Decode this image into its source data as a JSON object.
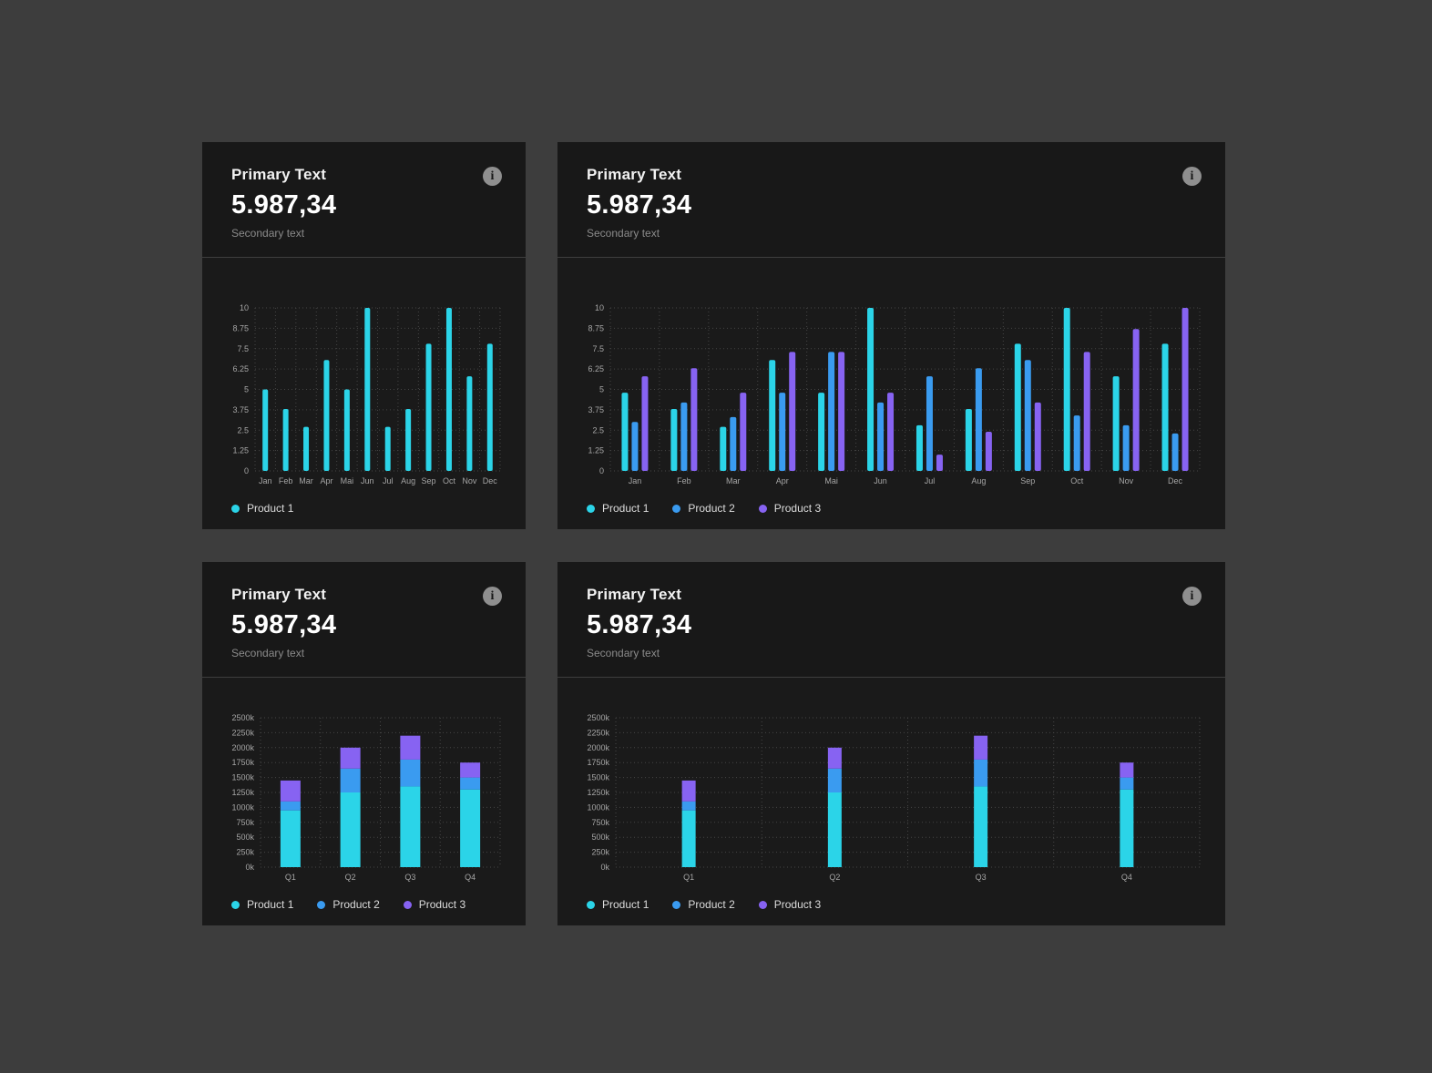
{
  "cards": [
    {
      "title": "Primary Text",
      "value": "5.987,34",
      "secondary": "Secondary text",
      "info_icon": "info"
    },
    {
      "title": "Primary Text",
      "value": "5.987,34",
      "secondary": "Secondary text",
      "info_icon": "info"
    },
    {
      "title": "Primary Text",
      "value": "5.987,34",
      "secondary": "Secondary text",
      "info_icon": "info"
    },
    {
      "title": "Primary Text",
      "value": "5.987,34",
      "secondary": "Secondary text",
      "info_icon": "info"
    }
  ],
  "colors": {
    "card_bg": "#1a1a1a",
    "page_bg": "#3d3d3d",
    "product1": "#2BD4E8",
    "product2": "#3A9BF0",
    "product3": "#8763F2"
  },
  "chart_data": [
    {
      "type": "bar",
      "title": "Primary Text",
      "categories": [
        "Jan",
        "Feb",
        "Mar",
        "Apr",
        "Mai",
        "Jun",
        "Jul",
        "Aug",
        "Sep",
        "Oct",
        "Nov",
        "Dec"
      ],
      "series": [
        {
          "name": "Product 1",
          "color": "#2BD4E8",
          "values": [
            5,
            3.8,
            2.7,
            6.8,
            5,
            10,
            2.7,
            3.8,
            7.8,
            10,
            5.8,
            7.8
          ]
        }
      ],
      "ylim": [
        0,
        10
      ],
      "yticks": [
        0,
        1.25,
        2.5,
        3.75,
        5,
        6.25,
        7.5,
        8.75,
        10
      ],
      "ytick_labels": [
        "0",
        "1.25",
        "2.5",
        "3.75",
        "5",
        "6.25",
        "7.5",
        "8.75",
        "10"
      ],
      "grid": "dotted",
      "legend_position": "bottom-left",
      "legend": [
        "Product 1"
      ]
    },
    {
      "type": "bar",
      "title": "Primary Text",
      "categories": [
        "Jan",
        "Feb",
        "Mar",
        "Apr",
        "Mai",
        "Jun",
        "Jul",
        "Aug",
        "Sep",
        "Oct",
        "Nov",
        "Dec"
      ],
      "series": [
        {
          "name": "Product 1",
          "color": "#2BD4E8",
          "values": [
            4.8,
            3.8,
            2.7,
            6.8,
            4.8,
            10,
            2.8,
            3.8,
            7.8,
            10,
            5.8,
            7.8
          ]
        },
        {
          "name": "Product 2",
          "color": "#3A9BF0",
          "values": [
            3,
            4.2,
            3.3,
            4.8,
            7.3,
            4.2,
            5.8,
            6.3,
            6.8,
            3.4,
            2.8,
            2.3
          ]
        },
        {
          "name": "Product 3",
          "color": "#8763F2",
          "values": [
            5.8,
            6.3,
            4.8,
            7.3,
            7.3,
            4.8,
            1,
            2.4,
            4.2,
            7.3,
            8.7,
            10
          ]
        }
      ],
      "ylim": [
        0,
        10
      ],
      "yticks": [
        0,
        1.25,
        2.5,
        3.75,
        5,
        6.25,
        7.5,
        8.75,
        10
      ],
      "ytick_labels": [
        "0",
        "1.25",
        "2.5",
        "3.75",
        "5",
        "6.25",
        "7.5",
        "8.75",
        "10"
      ],
      "grid": "dotted",
      "legend_position": "bottom-left",
      "legend": [
        "Product 1",
        "Product 2",
        "Product 3"
      ]
    },
    {
      "type": "stacked-bar",
      "title": "Primary Text",
      "categories": [
        "Q1",
        "Q2",
        "Q3",
        "Q4"
      ],
      "unit": "k",
      "series": [
        {
          "name": "Product 1",
          "color": "#2BD4E8",
          "values": [
            950,
            1250,
            1350,
            1300
          ]
        },
        {
          "name": "Product 2",
          "color": "#3A9BF0",
          "values": [
            150,
            400,
            450,
            200
          ]
        },
        {
          "name": "Product 3",
          "color": "#8763F2",
          "values": [
            350,
            350,
            400,
            250
          ]
        }
      ],
      "ylim": [
        0,
        2500
      ],
      "yticks": [
        0,
        250,
        500,
        750,
        1000,
        1250,
        1500,
        1750,
        2000,
        2250,
        2500
      ],
      "ytick_labels": [
        "0k",
        "250k",
        "500k",
        "750k",
        "1000k",
        "1250k",
        "1500k",
        "1750k",
        "2000k",
        "2250k",
        "2500k"
      ],
      "grid": "dotted",
      "legend_position": "bottom-left",
      "legend": [
        "Product 1",
        "Product 2",
        "Product 3"
      ]
    },
    {
      "type": "stacked-bar",
      "title": "Primary Text",
      "categories": [
        "Q1",
        "Q2",
        "Q3",
        "Q4"
      ],
      "unit": "k",
      "series": [
        {
          "name": "Product 1",
          "color": "#2BD4E8",
          "values": [
            950,
            1250,
            1350,
            1300
          ]
        },
        {
          "name": "Product 2",
          "color": "#3A9BF0",
          "values": [
            150,
            400,
            450,
            200
          ]
        },
        {
          "name": "Product 3",
          "color": "#8763F2",
          "values": [
            350,
            350,
            400,
            250
          ]
        }
      ],
      "ylim": [
        0,
        2500
      ],
      "yticks": [
        0,
        250,
        500,
        750,
        1000,
        1250,
        1500,
        1750,
        2000,
        2250,
        2500
      ],
      "ytick_labels": [
        "0k",
        "250k",
        "500k",
        "750k",
        "1000k",
        "1250k",
        "1500k",
        "1750k",
        "2000k",
        "2250k",
        "2500k"
      ],
      "grid": "dotted",
      "legend_position": "bottom-left",
      "legend": [
        "Product 1",
        "Product 2",
        "Product 3"
      ]
    }
  ]
}
